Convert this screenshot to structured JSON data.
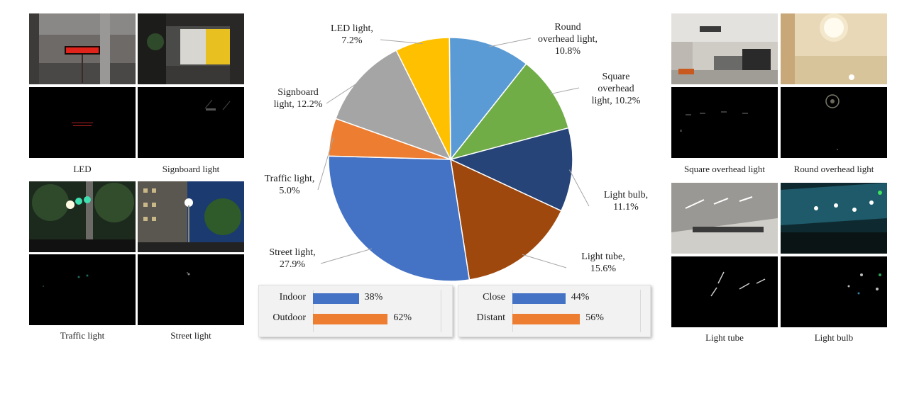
{
  "chart_data": {
    "type": "pie",
    "title": "",
    "slices": [
      {
        "name": "Round overhead light",
        "label": "Round\noverhead light,\n10.8%",
        "value": 10.8,
        "color": "#5b9bd5"
      },
      {
        "name": "Square overhead light",
        "label": "Square\noverhead\nlight, 10.2%",
        "value": 10.2,
        "color": "#70ad47"
      },
      {
        "name": "Light bulb",
        "label": "Light bulb,\n11.1%",
        "value": 11.1,
        "color": "#264478"
      },
      {
        "name": "Light tube",
        "label": "Light tube,\n15.6%",
        "value": 15.6,
        "color": "#9e480e"
      },
      {
        "name": "Street light",
        "label": "Street light,\n27.9%",
        "value": 27.9,
        "color": "#4472c4"
      },
      {
        "name": "Traffic light",
        "label": "Traffic light,\n5.0%",
        "value": 5.0,
        "color": "#ed7d31"
      },
      {
        "name": "Signboard light",
        "label": "Signboard\nlight, 12.2%",
        "value": 12.2,
        "color": "#a5a5a5"
      },
      {
        "name": "LED light",
        "label": "LED light,\n7.2%",
        "value": 7.2,
        "color": "#ffc000"
      }
    ],
    "bar_charts": [
      {
        "type": "bar",
        "orientation": "horizontal",
        "categories": [
          "Indoor",
          "Outdoor"
        ],
        "values": [
          38,
          62
        ],
        "labels": [
          "38%",
          "62%"
        ],
        "colors": [
          "#4472c4",
          "#ed7d31"
        ],
        "xlim": [
          0,
          100
        ]
      },
      {
        "type": "bar",
        "orientation": "horizontal",
        "categories": [
          "Close",
          "Distant"
        ],
        "values": [
          44,
          56
        ],
        "labels": [
          "44%",
          "56%"
        ],
        "colors": [
          "#4472c4",
          "#ed7d31"
        ],
        "xlim": [
          0,
          100
        ]
      }
    ]
  },
  "images": {
    "left": [
      {
        "caption": "LED",
        "top_scene": "led-sign-photo",
        "bottom_scene": "led-sign-event-frame"
      },
      {
        "caption": "Signboard light",
        "top_scene": "signboard-lobby-photo",
        "bottom_scene": "signboard-event-frame"
      },
      {
        "caption": "Traffic light",
        "top_scene": "traffic-light-photo",
        "bottom_scene": "traffic-light-event-frame"
      },
      {
        "caption": "Street light",
        "top_scene": "street-light-photo",
        "bottom_scene": "street-light-event-frame"
      }
    ],
    "right": [
      {
        "caption": "Square overhead light",
        "top_scene": "office-ceiling-photo",
        "bottom_scene": "square-light-event-frame"
      },
      {
        "caption": "Round overhead light",
        "top_scene": "round-ceiling-light-photo",
        "bottom_scene": "round-light-event-frame"
      },
      {
        "caption": "Light tube",
        "top_scene": "tunnel-light-tube-photo",
        "bottom_scene": "light-tube-event-frame"
      },
      {
        "caption": "Light bulb",
        "top_scene": "umbrella-light-bulbs-photo",
        "bottom_scene": "light-bulb-event-frame"
      }
    ]
  },
  "colors": {
    "frame_dark": "#000000"
  }
}
